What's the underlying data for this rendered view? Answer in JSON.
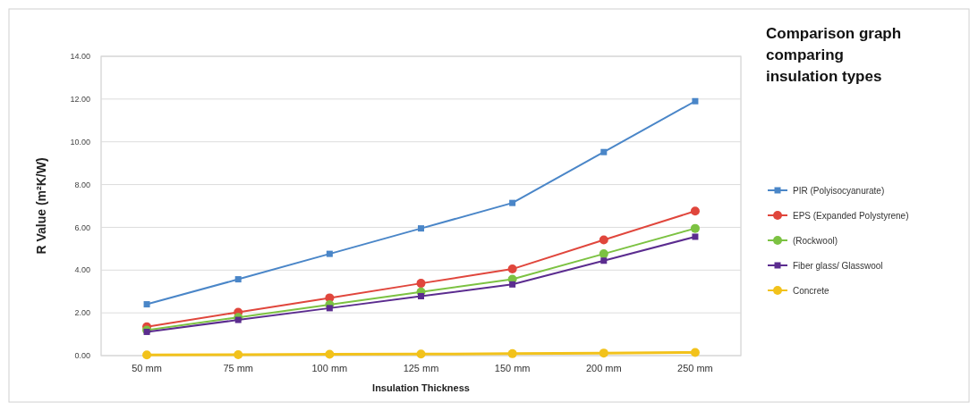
{
  "chart_data": {
    "type": "line",
    "title": "Comparison graph comparing insulation types",
    "xlabel": "Insulation Thickness",
    "ylabel": "R Value (m²K/W)",
    "categories": [
      "50 mm",
      "75 mm",
      "100 mm",
      "125 mm",
      "150 mm",
      "200 mm",
      "250 mm"
    ],
    "ylim": [
      0,
      14
    ],
    "yticks": [
      {
        "value": 0,
        "label": "0.00"
      },
      {
        "value": 2,
        "label": "2.00"
      },
      {
        "value": 4,
        "label": "4.00"
      },
      {
        "value": 6,
        "label": "6.00"
      },
      {
        "value": 8,
        "label": "8.00"
      },
      {
        "value": 10,
        "label": "10.00"
      },
      {
        "value": 12,
        "label": "12.00"
      },
      {
        "value": 14,
        "label": "14.00"
      }
    ],
    "grid": "y",
    "legend": "right",
    "line_style": "solid",
    "series": [
      {
        "name": "PIR (Polyisocyanurate)",
        "color": "#4a86c8",
        "marker": "square",
        "values": [
          2.4,
          3.57,
          4.76,
          5.95,
          7.14,
          9.52,
          11.9
        ]
      },
      {
        "name": "EPS (Expanded Polystyrene)",
        "color": "#e0463c",
        "marker": "circle",
        "values": [
          1.35,
          2.03,
          2.7,
          3.38,
          4.05,
          5.41,
          6.76
        ]
      },
      {
        "name": "(Rockwool)",
        "color": "#7cc242",
        "marker": "circle",
        "values": [
          1.19,
          1.79,
          2.38,
          2.98,
          3.57,
          4.76,
          5.95
        ]
      },
      {
        "name": "Fiber glass/ Glasswool",
        "color": "#5b2c8f",
        "marker": "square",
        "values": [
          1.11,
          1.67,
          2.22,
          2.78,
          3.33,
          4.44,
          5.56
        ]
      },
      {
        "name": "Concrete",
        "color": "#f2c21b",
        "marker": "circle",
        "values": [
          0.03,
          0.04,
          0.06,
          0.07,
          0.09,
          0.12,
          0.15
        ]
      }
    ]
  }
}
